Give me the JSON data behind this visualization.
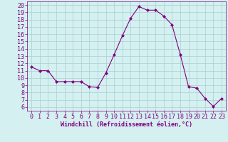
{
  "x": [
    0,
    1,
    2,
    3,
    4,
    5,
    6,
    7,
    8,
    9,
    10,
    11,
    12,
    13,
    14,
    15,
    16,
    17,
    18,
    19,
    20,
    21,
    22,
    23
  ],
  "y": [
    11.5,
    11.0,
    11.0,
    9.5,
    9.5,
    9.5,
    9.5,
    8.8,
    8.7,
    10.7,
    13.2,
    15.8,
    18.2,
    19.8,
    19.3,
    19.3,
    18.5,
    17.3,
    13.2,
    8.8,
    8.6,
    7.2,
    6.1,
    7.2
  ],
  "line_color": "#800080",
  "marker": "D",
  "marker_size": 2,
  "bg_color": "#d4f0f0",
  "grid_color": "#aacece",
  "xlabel": "Windchill (Refroidissement éolien,°C)",
  "xlabel_fontsize": 6.0,
  "tick_fontsize": 6.0,
  "xlim": [
    -0.5,
    23.5
  ],
  "ylim": [
    5.5,
    20.5
  ],
  "yticks": [
    6,
    7,
    8,
    9,
    10,
    11,
    12,
    13,
    14,
    15,
    16,
    17,
    18,
    19,
    20
  ],
  "xticks": [
    0,
    1,
    2,
    3,
    4,
    5,
    6,
    7,
    8,
    9,
    10,
    11,
    12,
    13,
    14,
    15,
    16,
    17,
    18,
    19,
    20,
    21,
    22,
    23
  ]
}
